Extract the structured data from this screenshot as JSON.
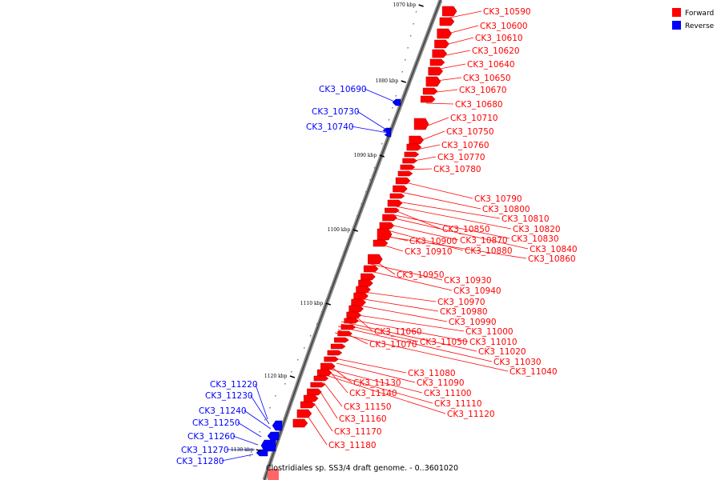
{
  "caption": "Clostridiales sp. SS3/4 draft genome. - 0..3601020",
  "legend": [
    {
      "label": "Forward",
      "color": "#ff0000"
    },
    {
      "label": "Reverse",
      "color": "#0000ff"
    }
  ],
  "ticks": [
    "1070 kbp",
    "1080 kbp",
    "1090 kbp",
    "1100 kbp",
    "1110 kbp",
    "1120 kbp",
    "1130 kbp"
  ],
  "forward_labels": [
    "CK3_10590",
    "CK3_10600",
    "CK3_10610",
    "CK3_10620",
    "CK3_10640",
    "CK3_10650",
    "CK3_10670",
    "CK3_10680",
    "CK3_10710",
    "CK3_10750",
    "CK3_10760",
    "CK3_10770",
    "CK3_10780",
    "CK3_10790",
    "CK3_10800",
    "CK3_10810",
    "CK3_10820",
    "CK3_10850",
    "CK3_10830",
    "CK3_10900",
    "CK3_10870",
    "CK3_10840",
    "CK3_10910",
    "CK3_10880",
    "CK3_10860",
    "CK3_10950",
    "CK3_10930",
    "CK3_10940",
    "CK3_10970",
    "CK3_10980",
    "CK3_10990",
    "CK3_11060",
    "CK3_11000",
    "CK3_11050",
    "CK3_11010",
    "CK3_11070",
    "CK3_11020",
    "CK3_11030",
    "CK3_11040",
    "CK3_11080",
    "CK3_11130",
    "CK3_11090",
    "CK3_11140",
    "CK3_11100",
    "CK3_11110",
    "CK3_11150",
    "CK3_11120",
    "CK3_11160",
    "CK3_11170",
    "CK3_11180"
  ],
  "reverse_labels": [
    "CK3_10690",
    "CK3_10730",
    "CK3_10740",
    "CK3_11220",
    "CK3_11230",
    "CK3_11240",
    "CK3_11250",
    "CK3_11260",
    "CK3_11270",
    "CK3_11280"
  ]
}
